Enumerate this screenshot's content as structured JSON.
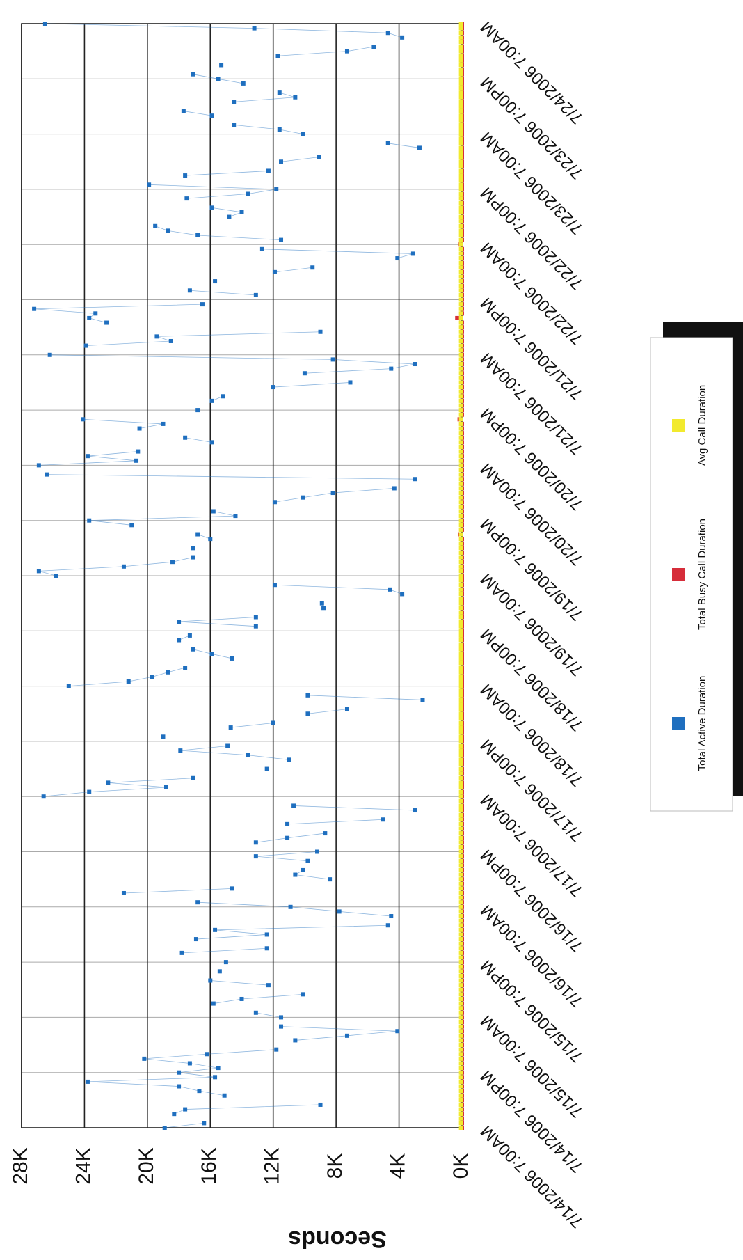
{
  "chart_data": {
    "type": "line",
    "y_label": "Seconds",
    "categories": [
      "7/14/2006 7:00AM",
      null,
      null,
      null,
      null,
      null,
      null,
      null,
      null,
      null,
      null,
      null,
      "7/14/2006 7:00PM",
      null,
      null,
      null,
      null,
      null,
      null,
      null,
      null,
      null,
      null,
      null,
      "7/15/2006 7:00AM",
      null,
      null,
      null,
      null,
      null,
      null,
      null,
      null,
      null,
      null,
      null,
      "7/15/2006 7:00PM",
      null,
      null,
      null,
      null,
      null,
      null,
      null,
      null,
      null,
      null,
      null,
      "7/16/2006 7:00AM",
      null,
      null,
      null,
      null,
      null,
      null,
      null,
      null,
      null,
      null,
      null,
      "7/16/2006 7:00PM",
      null,
      null,
      null,
      null,
      null,
      null,
      null,
      null,
      null,
      null,
      null,
      "7/17/2006 7:00AM",
      null,
      null,
      null,
      null,
      null,
      null,
      null,
      null,
      null,
      null,
      null,
      "7/17/2006 7:00PM",
      null,
      null,
      null,
      null,
      null,
      null,
      null,
      null,
      null,
      null,
      null,
      "7/18/2006 7:00AM",
      null,
      null,
      null,
      null,
      null,
      null,
      null,
      null,
      null,
      null,
      null,
      "7/18/2006 7:00PM",
      null,
      null,
      null,
      null,
      null,
      null,
      null,
      null,
      null,
      null,
      null,
      "7/19/2006 7:00AM",
      null,
      null,
      null,
      null,
      null,
      null,
      null,
      null,
      null,
      null,
      null,
      "7/19/2006 7:00PM",
      null,
      null,
      null,
      null,
      null,
      null,
      null,
      null,
      null,
      null,
      null,
      "7/20/2006 7:00AM",
      null,
      null,
      null,
      null,
      null,
      null,
      null,
      null,
      null,
      null,
      null,
      "7/20/2006 7:00PM",
      null,
      null,
      null,
      null,
      null,
      null,
      null,
      null,
      null,
      null,
      null,
      "7/21/2006 7:00AM",
      null,
      null,
      null,
      null,
      null,
      null,
      null,
      null,
      null,
      null,
      null,
      "7/21/2006 7:00PM",
      null,
      null,
      null,
      null,
      null,
      null,
      null,
      null,
      null,
      null,
      null,
      "7/22/2006 7:00AM",
      null,
      null,
      null,
      null,
      null,
      null,
      null,
      null,
      null,
      null,
      null,
      "7/22/2006 7:00PM",
      null,
      null,
      null,
      null,
      null,
      null,
      null,
      null,
      null,
      null,
      null,
      "7/23/2006 7:00AM",
      null,
      null,
      null,
      null,
      null,
      null,
      null,
      null,
      null,
      null,
      null,
      "7/23/2006 7:00PM",
      null,
      null,
      null,
      null,
      null,
      null,
      null,
      null,
      null,
      null,
      null,
      "7/24/2006 7:00AM"
    ],
    "series": [
      {
        "name": "Total Active Duration",
        "color": "#1f6fbf",
        "values": [
          18900,
          16400,
          null,
          18300,
          17600,
          9000,
          null,
          15100,
          16700,
          18000,
          23800,
          15700,
          18000,
          15500,
          17300,
          20200,
          16200,
          11800,
          null,
          10600,
          7300,
          4100,
          11500,
          null,
          11500,
          13100,
          null,
          15800,
          14000,
          10100,
          null,
          12300,
          16000,
          null,
          15400,
          null,
          15000,
          null,
          17800,
          12400,
          null,
          16900,
          12400,
          15700,
          4700,
          null,
          4500,
          7800,
          10900,
          16800,
          null,
          21500,
          14600,
          null,
          8400,
          10600,
          10100,
          null,
          9800,
          13100,
          9200,
          null,
          13100,
          11100,
          8700,
          null,
          11100,
          5000,
          null,
          3000,
          10700,
          null,
          26600,
          23700,
          18800,
          22500,
          17100,
          null,
          12400,
          null,
          11000,
          13600,
          17900,
          14900,
          null,
          19000,
          null,
          14700,
          12000,
          null,
          9800,
          7300,
          null,
          2500,
          9800,
          null,
          25000,
          21200,
          19700,
          18700,
          17600,
          null,
          14600,
          15900,
          17100,
          null,
          18000,
          17300,
          null,
          13100,
          18000,
          13100,
          null,
          8800,
          8900,
          null,
          3800,
          4600,
          11900,
          null,
          25800,
          26900,
          21500,
          18400,
          17100,
          null,
          17100,
          null,
          16000,
          16800,
          null,
          21000,
          23700,
          14400,
          15800,
          null,
          11900,
          10100,
          8200,
          4300,
          null,
          3000,
          26400,
          null,
          26900,
          20700,
          23800,
          20600,
          null,
          15900,
          17600,
          null,
          20500,
          19000,
          24100,
          null,
          16800,
          null,
          15900,
          15200,
          null,
          12000,
          7100,
          null,
          10000,
          4500,
          3000,
          8200,
          26200,
          null,
          23900,
          18500,
          19400,
          9000,
          null,
          22600,
          23700,
          23300,
          27200,
          16500,
          null,
          13100,
          17300,
          null,
          15700,
          null,
          11900,
          9500,
          null,
          4100,
          3100,
          12700,
          null,
          11500,
          16800,
          18700,
          19500,
          null,
          14800,
          14000,
          15900,
          null,
          17500,
          13600,
          11800,
          19900,
          null,
          17600,
          12300,
          null,
          11500,
          9100,
          null,
          2700,
          4700,
          null,
          10100,
          11600,
          14500,
          null,
          15900,
          17700,
          null,
          14500,
          10600,
          11600,
          null,
          13900,
          15500,
          17100,
          null,
          15300,
          null,
          11700,
          7300,
          5600,
          null,
          3800,
          4700,
          13200,
          26500
        ]
      },
      {
        "name": "Total Busy Call Duration",
        "color": "#d62d3a",
        "values": [
          0,
          0,
          0,
          0,
          0,
          0,
          0,
          0,
          0,
          0,
          0,
          0,
          0,
          0,
          0,
          0,
          0,
          0,
          0,
          0,
          0,
          0,
          0,
          0,
          0,
          0,
          0,
          0,
          0,
          0,
          0,
          0,
          0,
          0,
          0,
          0,
          0,
          0,
          0,
          0,
          0,
          0,
          0,
          0,
          0,
          0,
          0,
          0,
          0,
          0,
          0,
          0,
          0,
          0,
          0,
          0,
          0,
          0,
          0,
          0,
          0,
          0,
          0,
          0,
          0,
          0,
          0,
          0,
          0,
          0,
          0,
          0,
          0,
          0,
          0,
          0,
          0,
          0,
          0,
          0,
          0,
          0,
          0,
          0,
          0,
          0,
          0,
          0,
          0,
          0,
          0,
          0,
          0,
          0,
          0,
          0,
          0,
          0,
          0,
          0,
          0,
          0,
          0,
          0,
          0,
          0,
          0,
          0,
          0,
          0,
          0,
          0,
          0,
          0,
          0,
          0,
          0,
          0,
          0,
          0,
          0,
          0,
          0,
          0,
          0,
          0,
          0,
          0,
          0,
          120,
          0,
          0,
          0,
          0,
          0,
          0,
          0,
          0,
          0,
          0,
          0,
          0,
          0,
          0,
          0,
          0,
          0,
          0,
          0,
          0,
          0,
          0,
          0,
          0,
          150,
          0,
          0,
          0,
          0,
          0,
          0,
          0,
          0,
          0,
          0,
          0,
          0,
          0,
          0,
          0,
          0,
          0,
          0,
          0,
          0,
          0,
          300,
          0,
          0,
          0,
          0,
          0,
          0,
          0,
          0,
          0,
          0,
          0,
          0,
          0,
          0,
          0,
          80,
          0,
          0,
          0,
          0,
          0,
          0,
          0,
          0,
          0,
          0,
          0,
          0,
          0,
          0,
          0,
          0,
          0,
          0,
          0,
          0,
          0,
          0,
          0,
          0,
          0,
          0,
          0,
          0,
          0,
          0,
          0,
          0,
          0,
          0,
          0,
          0,
          0,
          0,
          0,
          0,
          0,
          0,
          0,
          0,
          0,
          0,
          0,
          0
        ]
      },
      {
        "name": "Avg Call Duration",
        "color": "#f2ea2e",
        "values": [
          60,
          60,
          60,
          60,
          60,
          60,
          60,
          60,
          60,
          60,
          60,
          60,
          60,
          60,
          60,
          60,
          60,
          60,
          60,
          60,
          60,
          60,
          60,
          60,
          60,
          60,
          60,
          60,
          60,
          60,
          60,
          60,
          60,
          60,
          60,
          60,
          60,
          60,
          60,
          60,
          60,
          60,
          60,
          60,
          60,
          60,
          60,
          60,
          60,
          60,
          60,
          60,
          60,
          60,
          60,
          60,
          60,
          60,
          60,
          60,
          60,
          60,
          60,
          60,
          60,
          60,
          60,
          60,
          60,
          60,
          60,
          60,
          60,
          60,
          60,
          60,
          60,
          60,
          60,
          60,
          60,
          60,
          60,
          60,
          60,
          60,
          60,
          60,
          60,
          60,
          60,
          60,
          60,
          60,
          60,
          60,
          60,
          60,
          60,
          60,
          60,
          60,
          60,
          60,
          60,
          60,
          60,
          60,
          60,
          60,
          60,
          60,
          60,
          60,
          60,
          60,
          60,
          60,
          60,
          60,
          60,
          60,
          60,
          60,
          60,
          60,
          60,
          60,
          60,
          60,
          60,
          60,
          60,
          60,
          60,
          60,
          60,
          60,
          60,
          60,
          60,
          60,
          60,
          60,
          60,
          60,
          60,
          60,
          60,
          60,
          60,
          60,
          60,
          60,
          60,
          60,
          60,
          60,
          60,
          60,
          60,
          60,
          60,
          60,
          60,
          60,
          60,
          60,
          60,
          60,
          60,
          60,
          60,
          60,
          60,
          60,
          60,
          60,
          60,
          60,
          60,
          60,
          60,
          60,
          60,
          60,
          60,
          60,
          60,
          60,
          60,
          60,
          60,
          60,
          60,
          60,
          60,
          60,
          60,
          60,
          60,
          60,
          60,
          60,
          60,
          60,
          60,
          60,
          60,
          60,
          60,
          60,
          60,
          60,
          60,
          60,
          60,
          60,
          60,
          60,
          60,
          60,
          60,
          60,
          60,
          60,
          60,
          60,
          60,
          60,
          60,
          60,
          60,
          60,
          60,
          60,
          60,
          60,
          60,
          60,
          60
        ]
      }
    ],
    "ylim": [
      0,
      28000
    ],
    "yticks": [
      {
        "value": 0,
        "label": "0K"
      },
      {
        "value": 4000,
        "label": "4K"
      },
      {
        "value": 8000,
        "label": "8K"
      },
      {
        "value": 12000,
        "label": "12K"
      },
      {
        "value": 16000,
        "label": "16K"
      },
      {
        "value": 20000,
        "label": "20K"
      },
      {
        "value": 24000,
        "label": "24K"
      },
      {
        "value": 28000,
        "label": "28K"
      }
    ],
    "grid": true,
    "legend": "right"
  }
}
